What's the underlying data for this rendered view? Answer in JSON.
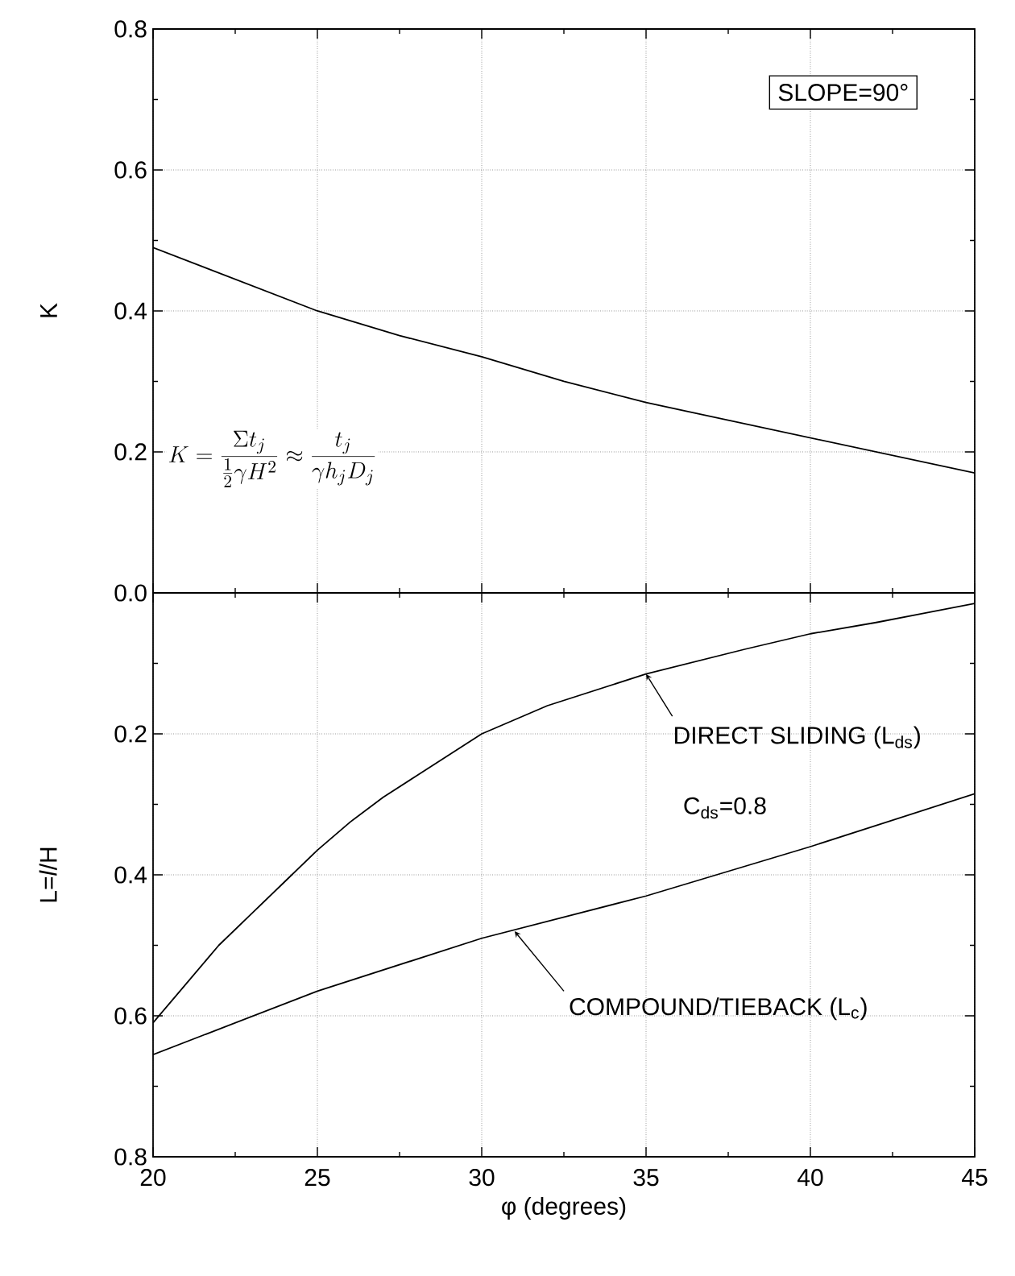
{
  "chart_data": [
    {
      "type": "line",
      "ylabel": "K",
      "xlim": [
        20,
        45
      ],
      "xticks": [
        20,
        25,
        30,
        35,
        40,
        45
      ],
      "ylim": [
        0,
        0.8
      ],
      "yticks": [
        0.2,
        0.4,
        0.6,
        0.8
      ],
      "grid": true,
      "tick_labels": "y",
      "x": [
        20,
        22.5,
        25,
        27.5,
        30,
        32.5,
        35,
        37.5,
        40,
        42.5,
        45
      ],
      "series": [
        {
          "color": "#000000",
          "values": [
            0.49,
            0.445,
            0.4,
            0.365,
            0.335,
            0.3,
            0.27,
            0.245,
            0.22,
            0.195,
            0.17
          ]
        }
      ],
      "annotations": [
        "SLOPE=90°",
        "K = \\frac{\\Sigma t_j}{\\frac{1}{2}\\gamma H^2} \\approx \\frac{t_j}{\\gamma h_j D_j}"
      ]
    },
    {
      "type": "line",
      "xlabel": "φ (degrees)",
      "ylabel": "L=*l*/H",
      "xlim": [
        20,
        45
      ],
      "xticks": [
        20,
        25,
        30,
        35,
        40,
        45
      ],
      "ylim": [
        0.8,
        0
      ],
      "yticks": [
        {
          "value": 0,
          "label": "0.0"
        },
        0.2,
        0.4,
        0.6,
        0.8
      ],
      "grid": true,
      "series": [
        {
          "color": "#000000",
          "x": [
            20,
            21,
            22,
            23,
            24,
            25,
            26,
            27,
            28,
            30,
            32,
            35,
            38,
            40,
            42,
            45
          ],
          "values": [
            0.61,
            0.555,
            0.5,
            0.455,
            0.41,
            0.365,
            0.325,
            0.29,
            0.26,
            0.2,
            0.16,
            0.115,
            0.08,
            0.058,
            0.042,
            0.015
          ]
        },
        {
          "color": "#000000",
          "x": [
            20,
            25,
            30,
            35,
            40,
            45
          ],
          "values": [
            0.655,
            0.565,
            0.49,
            0.43,
            0.36,
            0.285
          ]
        }
      ],
      "annotations": [
        {
          "text": "DIRECT SLIDING (L$_{ds}$)",
          "x": 35,
          "y": 0.115
        },
        "C$_{ds}$=0.8",
        {
          "text": "COMPOUND/TIEBACK (L$_{c}$)",
          "x": 31,
          "y": 0.48
        }
      ]
    }
  ]
}
